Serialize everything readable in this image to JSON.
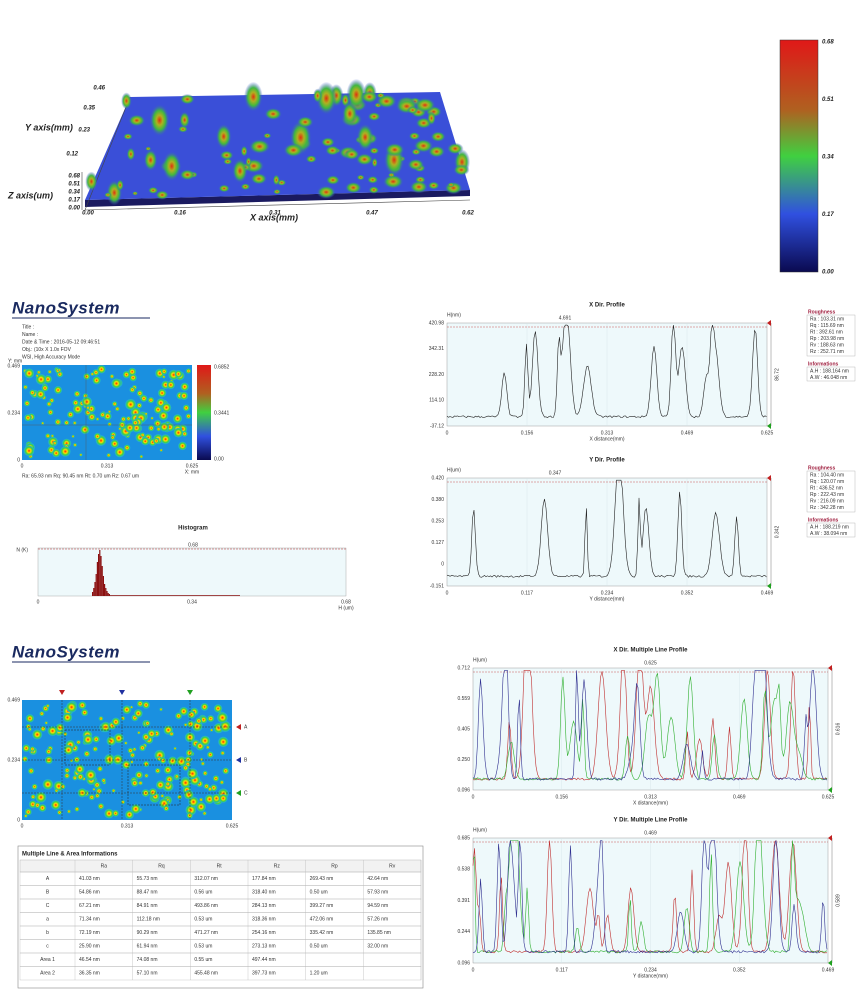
{
  "surface_3d": {
    "y_axis_label": "Y axis(mm)",
    "z_axis_label": "Z axis(um)",
    "x_axis_label": "X axis(mm)",
    "xticks": [
      "0.00",
      "0.16",
      "0.31",
      "0.47",
      "0.62"
    ],
    "yticks": [
      "0.12",
      "0.23",
      "0.35",
      "0.46"
    ],
    "zticks": [
      "0.00",
      "0.17",
      "0.34",
      "0.51",
      "0.68"
    ],
    "colorbar": [
      "0.68",
      "0.51",
      "0.34",
      "0.17",
      "0.00"
    ]
  },
  "report": {
    "logo": "NanoSystem",
    "info": [
      "Title :",
      "Name :",
      "Date & Time : 2016-05-12 09:46:51",
      "Obj.: (10x X 1.0x FOV",
      "WSI, High Accuracy Mode"
    ],
    "map": {
      "y_label": "Y: mm",
      "x_label": "X: mm",
      "yticks": [
        "0.469",
        "0.234",
        "0"
      ],
      "xticks": [
        "0",
        "0.313",
        "0.625"
      ],
      "colorbar": [
        "0.6852",
        "0.3441",
        "0.00"
      ],
      "stats": "Ra: 65.93 nm   Rq: 90.45 nm   Rt: 0.70 um   Rz: 0.67 um"
    },
    "histogram": {
      "title": "Histogram",
      "y_label": "N (K)",
      "x_label": "H (um)",
      "cursor": "0.68",
      "xticks": [
        "0",
        "0.34",
        "0.68"
      ]
    },
    "x_profile": {
      "title": "X Dir. Profile",
      "y_label": "H(nm)",
      "cursor": "4.691",
      "yticks": [
        "420.98",
        "342.31",
        "228.20",
        "114.10",
        "-37.12"
      ],
      "xticks": [
        "0",
        "0.156",
        "0.313",
        "0.469",
        "0.625"
      ],
      "x_label": "X distance(mm)",
      "span": "86.72",
      "roughness_title": "Roughness",
      "roughness": [
        "Ra : 103.31 nm",
        "Rq : 115.69 nm",
        "Rt : 392.61 nm",
        "Rp : 203.98 nm",
        "Rv : 188.63 nm",
        "Rz : 252.71 nm"
      ],
      "info_title": "Informations",
      "info": [
        "A.H : 188.164 nm",
        "A.W : 46.048 nm"
      ]
    },
    "y_profile": {
      "title": "Y Dir. Profile",
      "y_label": "H(um)",
      "cursor": "0.347",
      "yticks": [
        "0.420",
        "0.380",
        "0.253",
        "0.127",
        "0",
        "-0.151"
      ],
      "xticks": [
        "0",
        "0.117",
        "0.234",
        "0.352",
        "0.469"
      ],
      "x_label": "Y distance(mm)",
      "span": "0.342",
      "roughness_title": "Roughness",
      "roughness": [
        "Ra : 104.40 nm",
        "Rq : 120.07 nm",
        "Rt : 436.52 nm",
        "Rp : 222.43 nm",
        "Rv : 216.09 nm",
        "Rz : 342.28 nm"
      ],
      "info_title": "Informations",
      "info": [
        "A.H : 188.219 nm",
        "A.W : 38.094 nm"
      ]
    }
  },
  "multi": {
    "logo": "NanoSystem",
    "map": {
      "yticks": [
        "0.469",
        "0.234",
        "0"
      ],
      "xticks": [
        "0",
        "0.313",
        "0.625"
      ],
      "markers": [
        "A",
        "B",
        "C"
      ]
    },
    "x_profile": {
      "title": "X Dir. Multiple Line Profile",
      "y_label": "H(um)",
      "cursor": "0.625",
      "yticks": [
        "0.712",
        "0.559",
        "0.405",
        "0.250",
        "0.096"
      ],
      "xticks": [
        "0",
        "0.156",
        "0.313",
        "0.469",
        "0.625"
      ],
      "x_label": "X distance(mm)",
      "span": "0.616"
    },
    "y_profile": {
      "title": "Y Dir. Multiple Line Profile",
      "y_label": "H(um)",
      "cursor": "0.469",
      "yticks": [
        "0.685",
        "0.538",
        "0.391",
        "0.244",
        "0.096"
      ],
      "xticks": [
        "0",
        "0.117",
        "0.234",
        "0.352",
        "0.469"
      ],
      "x_label": "Y distance(mm)",
      "span": "0.589"
    },
    "table": {
      "title": "Multiple Line & Area Informations",
      "header": [
        "Ra",
        "Rq",
        "Rt",
        "Rz",
        "Rp",
        "Rv"
      ],
      "rows": [
        {
          "label": "A",
          "color": "#c02020",
          "cells": [
            "41.03 nm",
            "55.73 nm",
            "312.07 nm",
            "177.84 nm",
            "269.43 nm",
            "42.64 nm"
          ]
        },
        {
          "label": "B",
          "color": "#2030a0",
          "cells": [
            "54.86 nm",
            "88.47 nm",
            "0.56 um",
            "318.40 nm",
            "0.50 um",
            "57.93 nm"
          ]
        },
        {
          "label": "C",
          "color": "#20a020",
          "cells": [
            "67.21 nm",
            "84.91 nm",
            "493.86 nm",
            "284.13 nm",
            "399.27 nm",
            "94.59 nm"
          ]
        },
        {
          "label": "a",
          "color": "#c02020",
          "cells": [
            "71.34 nm",
            "112.18 nm",
            "0.53 um",
            "318.36 nm",
            "472.06 nm",
            "57.26 nm"
          ]
        },
        {
          "label": "b",
          "color": "#2030a0",
          "cells": [
            "72.19 nm",
            "90.29 nm",
            "471.27 nm",
            "254.16 nm",
            "335.42 nm",
            "135.85 nm"
          ]
        },
        {
          "label": "c",
          "color": "#20a020",
          "cells": [
            "25.90 nm",
            "61.94 nm",
            "0.53 um",
            "273.13 nm",
            "0.50 um",
            "32.00 nm"
          ]
        },
        {
          "label": "Area 1",
          "color": "#a01818",
          "cells": [
            "46.54 nm",
            "74.08 nm",
            "0.55 um",
            "497.44 nm"
          ]
        },
        {
          "label": "Area 2",
          "color": "#1a2a90",
          "cells": [
            "36.35 nm",
            "57.10 nm",
            "455.48 nm",
            "397.73 nm",
            "1.20 um"
          ]
        }
      ]
    }
  }
}
